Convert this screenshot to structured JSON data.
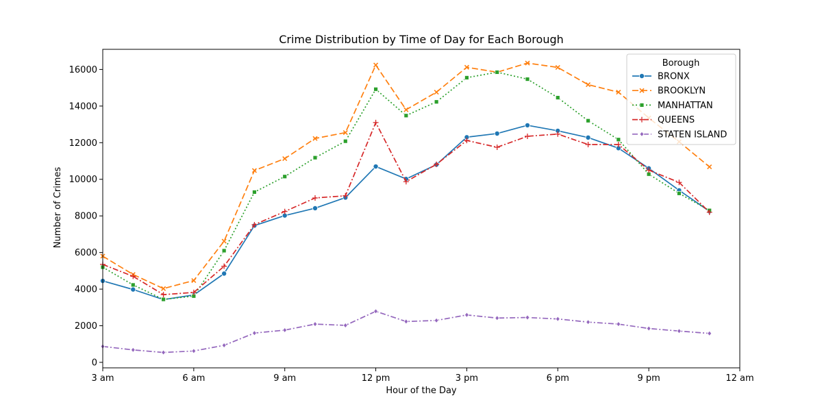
{
  "chart_data": {
    "type": "line",
    "title": "Crime Distribution by Time of Day for Each Borough",
    "xlabel": "Hour of the Day",
    "ylabel": "Number of Crimes",
    "xlim": [
      3,
      24
    ],
    "ylim": [
      -300,
      17100
    ],
    "x_ticks": [
      {
        "value": 3,
        "label": "3 am"
      },
      {
        "value": 6,
        "label": "6 am"
      },
      {
        "value": 9,
        "label": "9 am"
      },
      {
        "value": 12,
        "label": "12 pm"
      },
      {
        "value": 15,
        "label": "3 pm"
      },
      {
        "value": 18,
        "label": "6 pm"
      },
      {
        "value": 21,
        "label": "9 pm"
      },
      {
        "value": 24,
        "label": "12 am"
      }
    ],
    "y_ticks": [
      0,
      2000,
      4000,
      6000,
      8000,
      10000,
      12000,
      14000,
      16000
    ],
    "grid": false,
    "legend": {
      "title": "Borough",
      "placement": "top-right"
    },
    "x": [
      3,
      4,
      5,
      6,
      7,
      8,
      9,
      10,
      11,
      12,
      13,
      14,
      15,
      16,
      17,
      18,
      19,
      20,
      21,
      22,
      23
    ],
    "series": [
      {
        "name": "BRONX",
        "color": "#1f77b4",
        "dash": "solid",
        "marker": "circle",
        "values": [
          4450,
          3980,
          3430,
          3680,
          4850,
          7470,
          8020,
          8420,
          9000,
          10700,
          10020,
          10800,
          12300,
          12500,
          12950,
          12650,
          12280,
          11700,
          10600,
          9400,
          8250
        ]
      },
      {
        "name": "BROOKLYN",
        "color": "#ff7f0e",
        "dash": "dashed",
        "marker": "x",
        "values": [
          5800,
          4800,
          4030,
          4470,
          6620,
          10480,
          11130,
          12230,
          12550,
          16240,
          13800,
          14760,
          16120,
          15850,
          16350,
          16110,
          15170,
          14760,
          13350,
          12050,
          10680
        ]
      },
      {
        "name": "MANHATTAN",
        "color": "#2ca02c",
        "dash": "dotted",
        "marker": "square",
        "values": [
          5200,
          4230,
          3440,
          3620,
          6100,
          9300,
          10150,
          11180,
          12080,
          14920,
          13480,
          14230,
          15550,
          15850,
          15470,
          14460,
          13200,
          12170,
          10280,
          9230,
          8300
        ]
      },
      {
        "name": "QUEENS",
        "color": "#d62728",
        "dash": "dashdot",
        "marker": "plus",
        "values": [
          5350,
          4700,
          3700,
          3820,
          5250,
          7520,
          8240,
          8980,
          9100,
          13100,
          9870,
          10820,
          12120,
          11750,
          12350,
          12470,
          11900,
          11900,
          10500,
          9830,
          8200
        ]
      },
      {
        "name": "STATEN ISLAND",
        "color": "#9467bd",
        "dash": "dashdot",
        "marker": "diamond",
        "values": [
          870,
          680,
          540,
          620,
          930,
          1600,
          1760,
          2090,
          2020,
          2790,
          2230,
          2290,
          2590,
          2420,
          2450,
          2370,
          2200,
          2090,
          1850,
          1710,
          1580
        ]
      }
    ]
  }
}
